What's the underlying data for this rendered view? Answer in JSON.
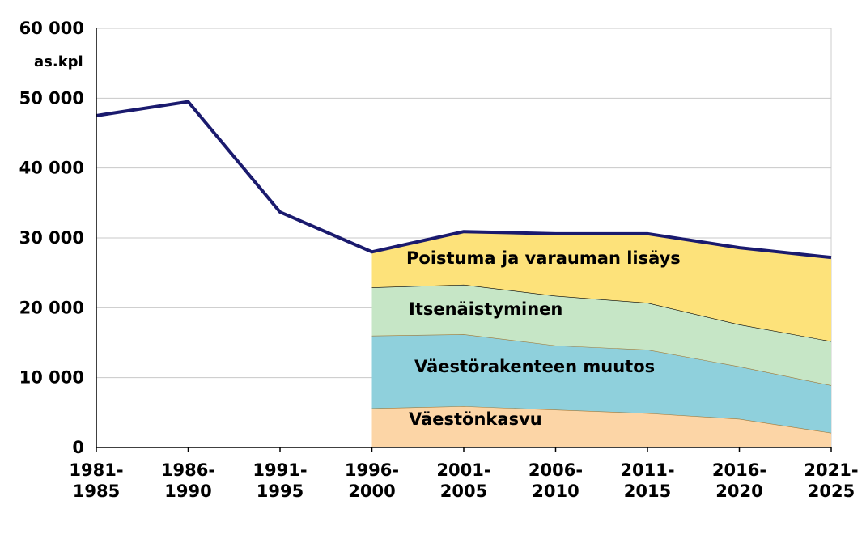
{
  "chart_data": {
    "type": "area",
    "y_label": "as.kpl",
    "categories": [
      [
        "1981-",
        "1985"
      ],
      [
        "1986-",
        "1990"
      ],
      [
        "1991-",
        "1995"
      ],
      [
        "1996-",
        "2000"
      ],
      [
        "2001-",
        "2005"
      ],
      [
        "2006-",
        "2010"
      ],
      [
        "2011-",
        "2015"
      ],
      [
        "2016-",
        "2020"
      ],
      [
        "2021-",
        "2025"
      ]
    ],
    "series": [
      {
        "name": "Väestönkasvu",
        "color": "#fcd5a6",
        "values": [
          null,
          null,
          null,
          5600,
          5900,
          5400,
          4900,
          4100,
          2100
        ]
      },
      {
        "name": "Väestörakenteen muutos",
        "color": "#8fd0dc",
        "values": [
          null,
          null,
          null,
          10400,
          10300,
          9200,
          9100,
          7500,
          6800
        ]
      },
      {
        "name": "Itsenäistyminen",
        "color": "#c6e6c6",
        "values": [
          null,
          null,
          null,
          6900,
          7100,
          7100,
          6700,
          6000,
          6300
        ]
      },
      {
        "name": "Poistuma ja varauman lisäys",
        "color": "#fde27a",
        "values": [
          null,
          null,
          null,
          5100,
          7600,
          8900,
          9900,
          11000,
          12000
        ]
      },
      {
        "type": "line",
        "color": "#1a1a6e",
        "values": [
          47500,
          49500,
          33700,
          28000,
          30900,
          30600,
          30600,
          28600,
          27200
        ]
      }
    ],
    "ylim": [
      0,
      60000
    ],
    "yticks": [
      0,
      {
        "value": 10000,
        "label": "10 000"
      },
      {
        "value": 20000,
        "label": "20 000"
      },
      {
        "value": 30000,
        "label": "30 000"
      },
      {
        "value": 40000,
        "label": "40 000"
      },
      {
        "value": 50000,
        "label": "50 000"
      },
      {
        "value": 60000,
        "label": "60 000"
      }
    ],
    "grid": true
  }
}
